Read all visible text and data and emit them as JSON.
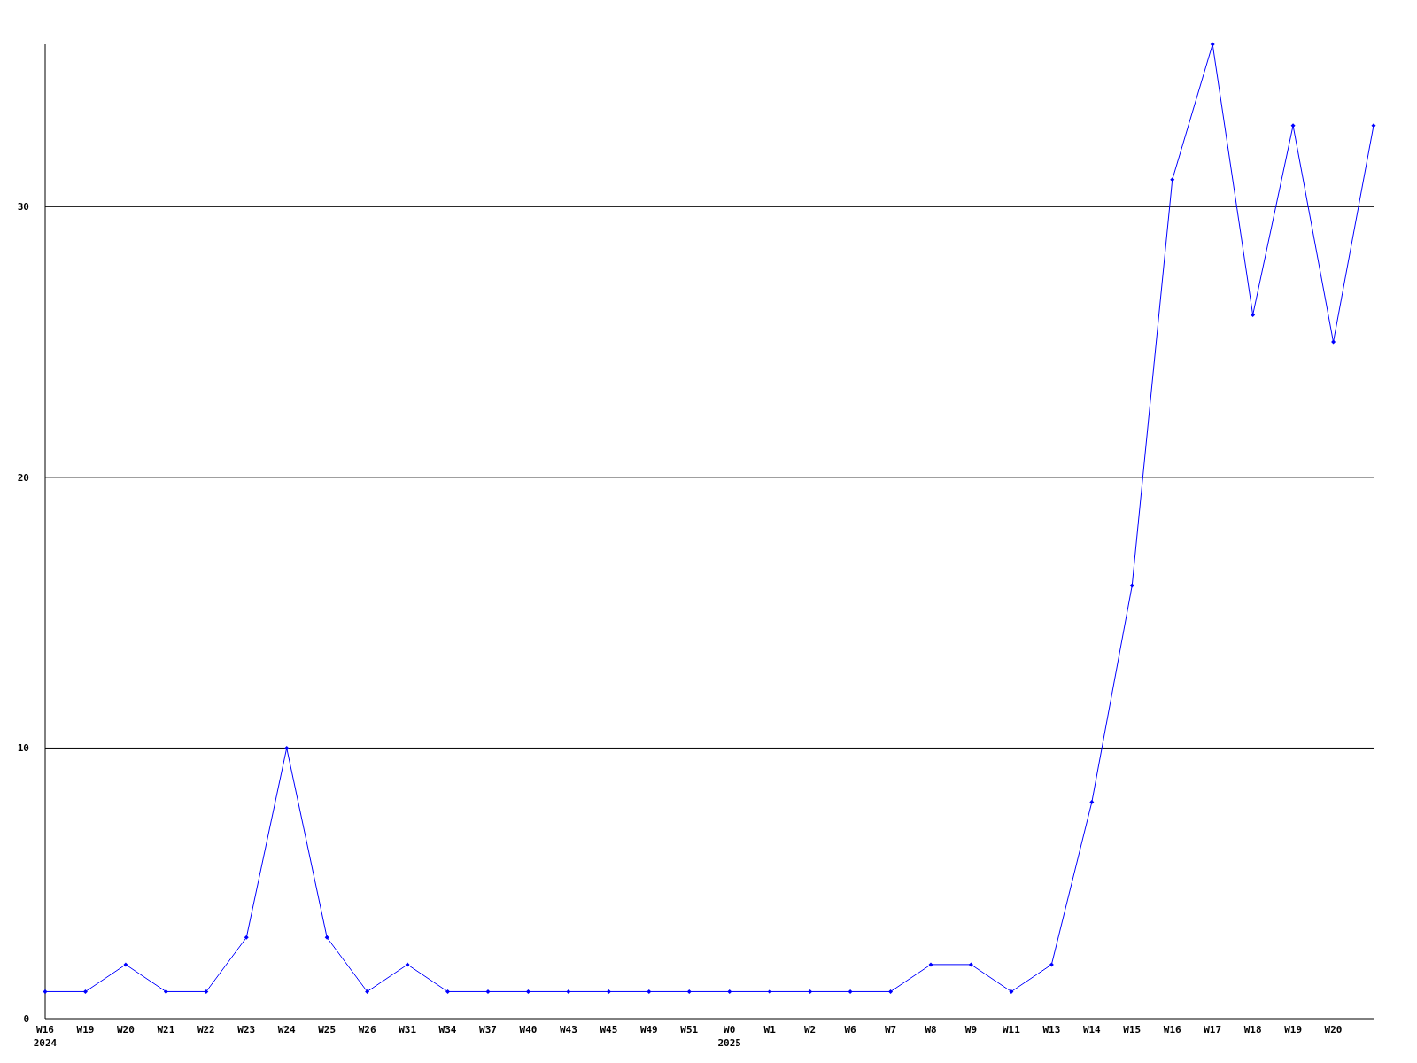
{
  "chart_data": {
    "type": "line",
    "categories": [
      "W16\n2024",
      "W19",
      "W20",
      "W21",
      "W22",
      "W23",
      "W24",
      "W25",
      "W26",
      "W31",
      "W34",
      "W37",
      "W40",
      "W43",
      "W45",
      "W49",
      "W51",
      "W0\n2025",
      "W1",
      "W2",
      "W6",
      "W7",
      "W8",
      "W9",
      "W11",
      "W13",
      "W14",
      "W15",
      "W16",
      "W17",
      "W18",
      "W19",
      "W20",
      null
    ],
    "series": [
      {
        "color": "#0000ff",
        "values": [
          1,
          1,
          2,
          1,
          1,
          3,
          10,
          3,
          1,
          2,
          1,
          1,
          1,
          1,
          1,
          1,
          1,
          1,
          1,
          1,
          1,
          1,
          2,
          2,
          1,
          2,
          8,
          16,
          31,
          36,
          26,
          33,
          25,
          33
        ]
      }
    ],
    "ylim": [
      0,
      36
    ],
    "yticks": [
      0,
      10,
      20,
      30
    ],
    "grid": "y",
    "marker": "diamond",
    "line_style": "solid"
  }
}
